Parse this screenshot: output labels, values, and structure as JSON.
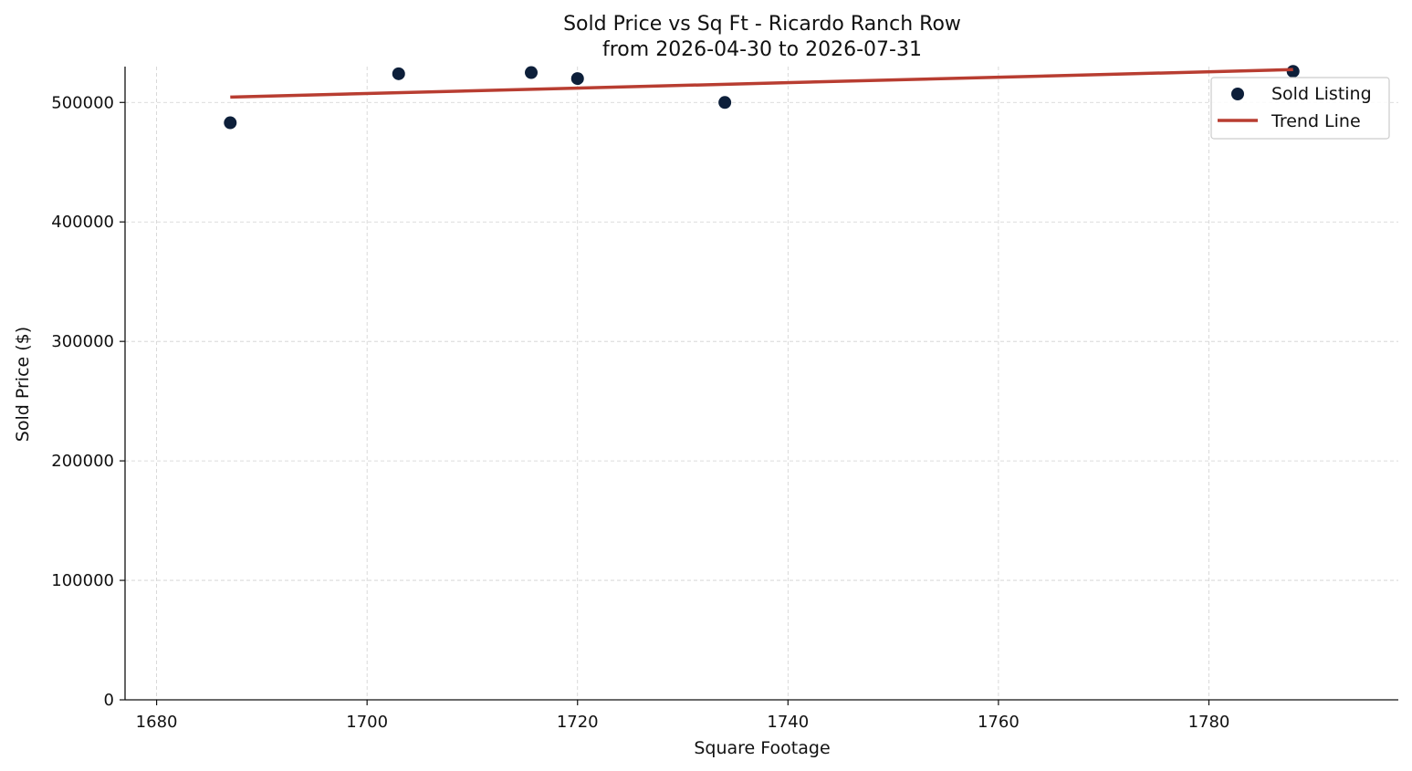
{
  "chart_data": {
    "type": "scatter",
    "title": "Sold Price vs Sq Ft - Ricardo Ranch Row",
    "subtitle": "from 2026-04-30 to 2026-07-31",
    "xlabel": "Square Footage",
    "ylabel": "Sold Price ($)",
    "xlim": [
      1677,
      1798
    ],
    "ylim": [
      0,
      530000
    ],
    "xticks": [
      1680,
      1700,
      1720,
      1740,
      1760,
      1780
    ],
    "yticks": [
      0,
      100000,
      200000,
      300000,
      400000,
      500000
    ],
    "grid": true,
    "legend_position": "top-right",
    "series": [
      {
        "name": "Sold Listing",
        "kind": "scatter",
        "color": "#0d1f3a",
        "x": [
          1687,
          1703,
          1715.6,
          1720,
          1734,
          1788
        ],
        "y": [
          483000,
          524000,
          525000,
          520000,
          500000,
          526000
        ]
      },
      {
        "name": "Trend Line",
        "kind": "line",
        "color": "#b83d31",
        "x": [
          1687,
          1788
        ],
        "y": [
          504500,
          527500
        ]
      }
    ]
  }
}
